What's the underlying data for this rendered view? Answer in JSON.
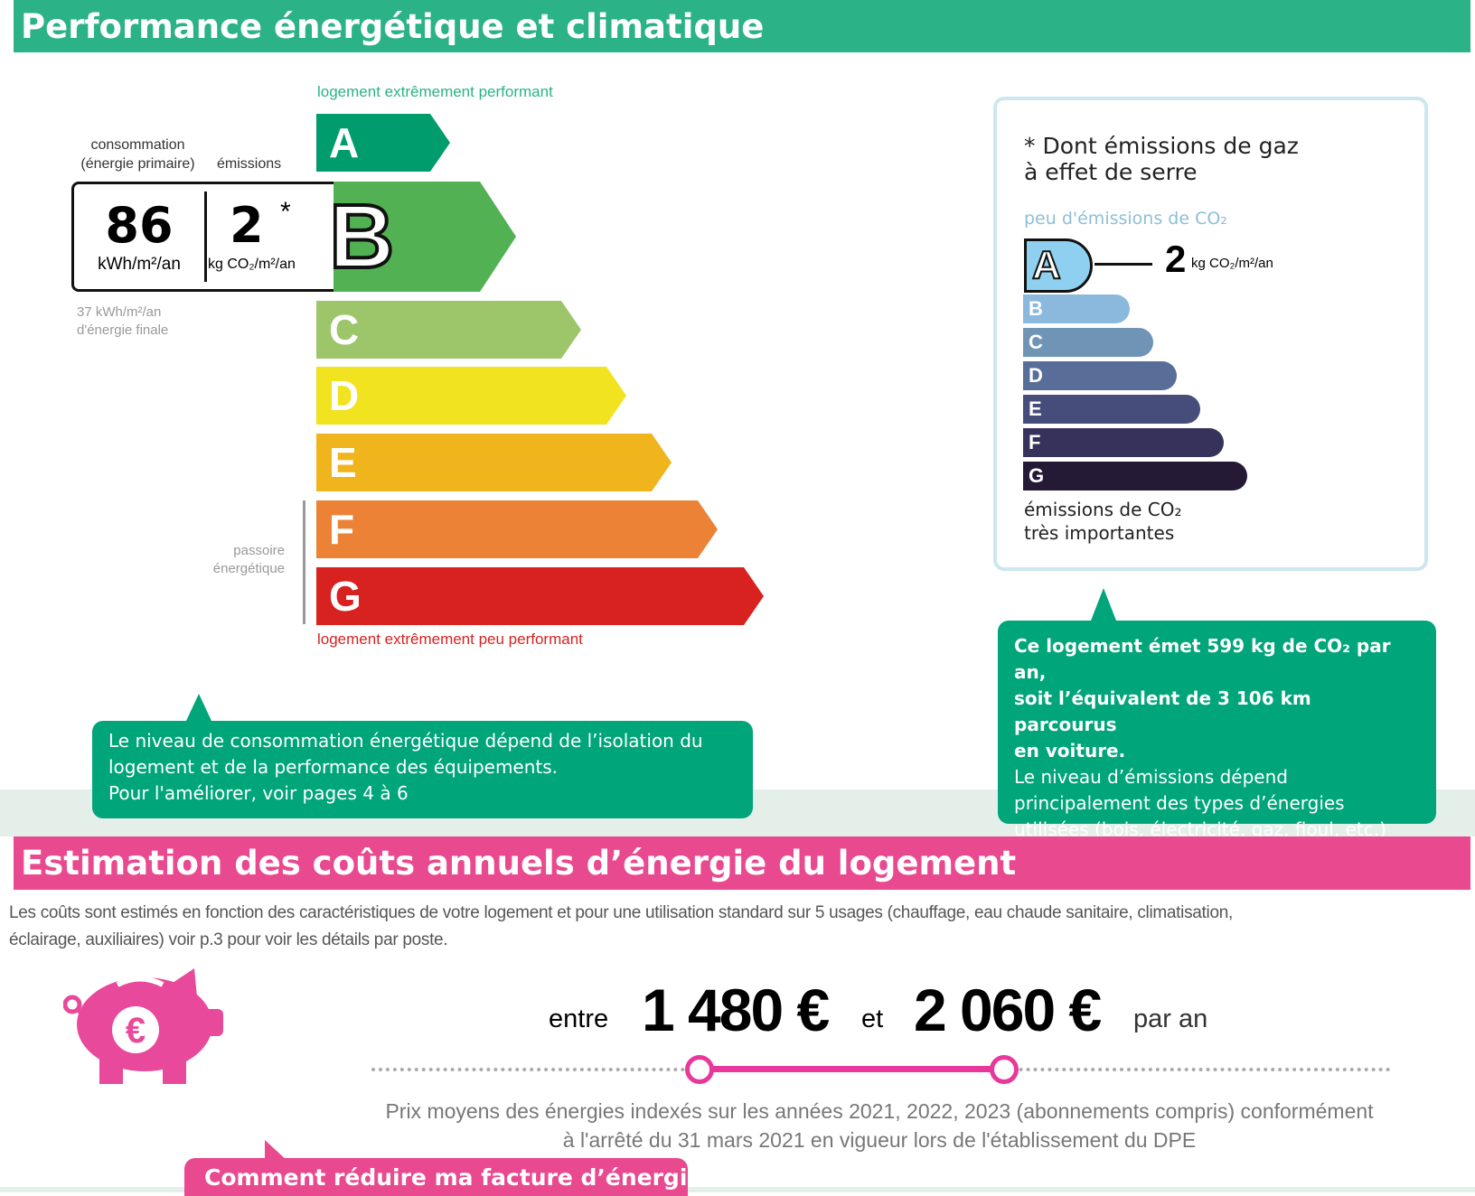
{
  "section1": {
    "title": "Performance énergétique et climatique"
  },
  "dpe": {
    "top_label": "logement extrêmement performant",
    "bottom_label": "logement extrêmement peu performant",
    "classes": [
      "A",
      "B",
      "C",
      "D",
      "E",
      "F",
      "G"
    ],
    "class_colors": [
      "#009c6d",
      "#52b153",
      "#9dc66b",
      "#f1e31f",
      "#f0b41c",
      "#eb8235",
      "#d7221f"
    ],
    "current_class": "B",
    "consumption_label_1": "consommation",
    "consumption_label_2": "(énergie primaire)",
    "emissions_label": "émissions",
    "consumption_value": "86",
    "consumption_unit": "kWh/m²/an",
    "emissions_value": "2",
    "emissions_asterisk": "*",
    "emissions_unit": "kg CO₂/m²/an",
    "final_energy_1": "37 kWh/m²/an",
    "final_energy_2": "d'énergie finale",
    "passoire_1": "passoire",
    "passoire_2": "énergétique"
  },
  "left_bubble": {
    "line1": "Le niveau de consommation énergétique dépend de l’isolation du",
    "line2": "logement et de la performance des équipements.",
    "line3": "Pour l'améliorer, voir pages 4 à 6"
  },
  "ges": {
    "title_1": "* Dont émissions de gaz",
    "title_2": "à effet de serre",
    "top_label": "peu d'émissions de CO₂",
    "current_class": "A",
    "value": "2",
    "unit": "kg CO₂/m²/an",
    "classes": [
      "B",
      "C",
      "D",
      "E",
      "F",
      "G"
    ],
    "class_colors": [
      "#8ab9dd",
      "#6f94b5",
      "#586d98",
      "#474d7a",
      "#36325b",
      "#251a36"
    ],
    "bottom_label_1": "émissions de CO₂",
    "bottom_label_2": "très importantes"
  },
  "right_bubble": {
    "bold1": "Ce logement émet 599 kg de CO₂ par an,",
    "bold2": "soit l’équivalent de 3 106 km parcourus",
    "bold3": "en voiture.",
    "line1": "Le niveau d’émissions dépend",
    "line2": "principalement des types d’énergies",
    "line3": "utilisées (bois, électricité, gaz, fioul, etc.)"
  },
  "section2": {
    "title": "Estimation des coûts annuels d’énergie du logement",
    "desc1": "Les coûts sont estimés en fonction des caractéristiques de votre logement et pour une utilisation standard sur 5 usages (chauffage, eau chaude sanitaire, climatisation,",
    "desc2": "éclairage, auxiliaires) voir p.3 pour voir les détails par poste."
  },
  "cost": {
    "between": "entre",
    "min": "1 480 €",
    "and": "et",
    "max": "2 060 €",
    "per_year": "par an",
    "note1": "Prix moyens des énergies indexés sur les années 2021, 2022, 2023 (abonnements compris) conformément",
    "note2": "à l'arrêté du 31 mars 2021 en vigueur lors de l'établissement du DPE",
    "button": "Comment réduire ma facture d’énergie ?"
  },
  "colors": {
    "green": "#2bb287",
    "pink": "#e8498f",
    "bubble_green": "#00a57a"
  }
}
